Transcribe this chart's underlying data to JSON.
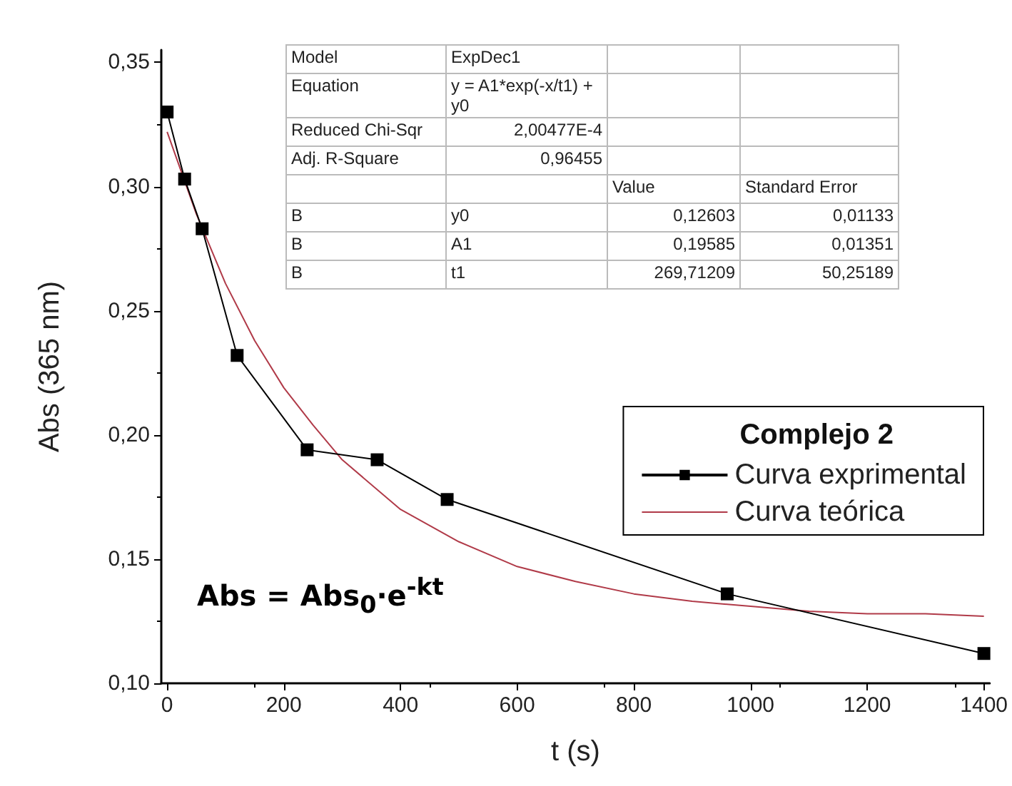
{
  "chart_data": {
    "type": "line",
    "xlabel": "t (s)",
    "ylabel": "Abs (365 nm)",
    "legend_title": "Complejo 2",
    "legend": "right",
    "grid": false,
    "xlim": [
      -10,
      1410
    ],
    "xticks": [
      0,
      200,
      400,
      600,
      800,
      1000,
      1200,
      1400
    ],
    "ylim": [
      0.1,
      0.355
    ],
    "yticks": [
      {
        "value": 0.1,
        "label": "0,10"
      },
      {
        "value": 0.15,
        "label": "0,15"
      },
      {
        "value": 0.2,
        "label": "0,20"
      },
      {
        "value": 0.25,
        "label": "0,25"
      },
      {
        "value": 0.3,
        "label": "0,30"
      },
      {
        "value": 0.35,
        "label": "0,35"
      }
    ],
    "series": [
      {
        "name": "Curva exprimental",
        "color": "#000000",
        "marker": "square",
        "x": [
          0,
          30,
          60,
          120,
          240,
          360,
          480,
          960,
          1400
        ],
        "values": [
          0.33,
          0.303,
          0.283,
          0.232,
          0.194,
          0.19,
          0.174,
          0.136,
          0.112
        ]
      },
      {
        "name": "Curva teórica",
        "color": "#b03a48",
        "marker": "none",
        "x": [
          0,
          50,
          100,
          150,
          200,
          250,
          300,
          400,
          500,
          600,
          700,
          800,
          900,
          1000,
          1100,
          1200,
          1300,
          1400
        ],
        "values": [
          0.322,
          0.289,
          0.261,
          0.238,
          0.219,
          0.204,
          0.19,
          0.17,
          0.157,
          0.147,
          0.141,
          0.136,
          0.133,
          0.131,
          0.129,
          0.128,
          0.128,
          0.127
        ]
      }
    ],
    "annotations": [
      "Model\tExpDec1\t\t",
      "Equation\ty = A1*exp(-x/t1) + y0\t\t",
      "Reduced Chi-Sqr\t2,00477E-4\t\t",
      "Adj. R-Square\t0,96455\t\t",
      "\t\tValue\tStandard Error",
      "B\ty0\t0,12603\t0,01133",
      "B\tA1\t0,19585\t0,01351",
      "B\tt1\t269,71209\t50,25189",
      "Abs = Abs$_{0}$·e$^{-kt}$"
    ]
  }
}
